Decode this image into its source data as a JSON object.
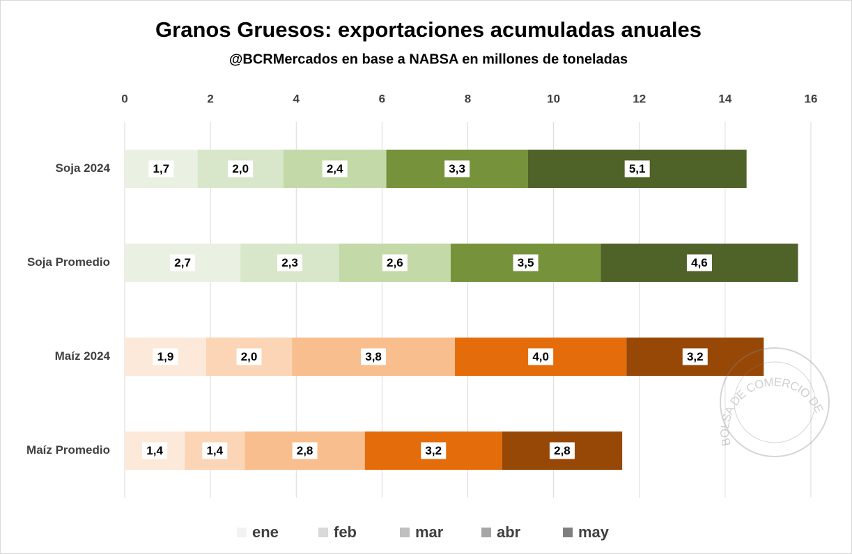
{
  "chart_data": {
    "type": "bar",
    "orientation": "horizontal",
    "stacked": true,
    "title": "Granos Gruesos: exportaciones acumuladas anuales",
    "subtitle": "@BCRMercados en base a NABSA en millones de toneladas",
    "watermark": "BOLSA DE COMERCIO DE ROSARIO",
    "categories": [
      "Soja 2024",
      "Soja Promedio",
      "Maíz 2024",
      "Maíz Promedio"
    ],
    "series": [
      {
        "name": "ene",
        "color": "#f2f2f2",
        "colors": [
          "#ebf1e2",
          "#ebf1e2",
          "#fde9d9",
          "#fde9d9"
        ],
        "values": [
          1.7,
          2.7,
          1.9,
          1.4
        ],
        "value_labels": [
          "1,7",
          "2,7",
          "1,9",
          "1,4"
        ]
      },
      {
        "name": "feb",
        "color": "#d9d9d9",
        "colors": [
          "#d8e6c9",
          "#d8e6c9",
          "#fbd5b5",
          "#fbd5b5"
        ],
        "values": [
          2.0,
          2.3,
          2.0,
          1.4
        ],
        "value_labels": [
          "2,0",
          "2,3",
          "2,0",
          "1,4"
        ]
      },
      {
        "name": "mar",
        "color": "#bfbfbf",
        "colors": [
          "#c3d9a7",
          "#c3d9a7",
          "#f9be8e",
          "#f9be8e"
        ],
        "values": [
          2.4,
          2.6,
          3.8,
          2.8
        ],
        "value_labels": [
          "2,4",
          "2,6",
          "3,8",
          "2,8"
        ]
      },
      {
        "name": "abr",
        "color": "#a6a6a6",
        "colors": [
          "#76933c",
          "#76933c",
          "#e46c0a",
          "#e46c0a"
        ],
        "values": [
          3.3,
          3.5,
          4.0,
          3.2
        ],
        "value_labels": [
          "3,3",
          "3,5",
          "4,0",
          "3,2"
        ]
      },
      {
        "name": "may",
        "color": "#7f7f7f",
        "colors": [
          "#4f6228",
          "#4f6228",
          "#974706",
          "#974706"
        ],
        "values": [
          5.1,
          4.6,
          3.2,
          2.8
        ],
        "value_labels": [
          "5,1",
          "4,6",
          "3,2",
          "2,8"
        ]
      }
    ],
    "xlim": [
      0,
      16
    ],
    "xticks": [
      0,
      2,
      4,
      6,
      8,
      10,
      12,
      14,
      16
    ],
    "grid": true,
    "legend": "bottom"
  }
}
